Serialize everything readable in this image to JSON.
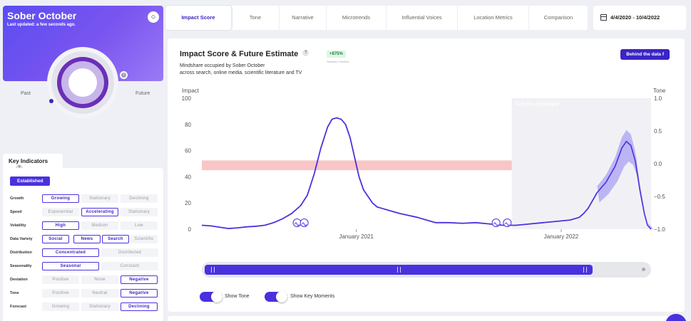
{
  "hero": {
    "title": "Sober October",
    "last_updated": "Last updated: a few seconds ago.",
    "past_label": "Past",
    "future_label": "Future"
  },
  "key_indicators": {
    "title": "Key Indicators",
    "help": "?",
    "status": "Established",
    "rows": [
      {
        "label": "Growth",
        "options": [
          "Growing",
          "Stationary",
          "Declining"
        ],
        "selected": [
          0
        ]
      },
      {
        "label": "Speed",
        "options": [
          "Exponential",
          "Accelerating",
          "Stationary"
        ],
        "selected": [
          1
        ]
      },
      {
        "label": "Volatility",
        "options": [
          "High",
          "Medium",
          "Low"
        ],
        "selected": [
          0
        ]
      },
      {
        "label": "Data Variety",
        "options": [
          "Social",
          "News",
          "Search",
          "Scientific"
        ],
        "selected": [
          0,
          1,
          2
        ]
      },
      {
        "label": "Distribution",
        "options": [
          "Concentrated",
          "Distributed"
        ],
        "selected": [
          0
        ]
      },
      {
        "label": "Seasonality",
        "options": [
          "Seasonal",
          "Constant"
        ],
        "selected": [
          0
        ]
      },
      {
        "label": "Deviation",
        "options": [
          "Positive",
          "None",
          "Negative"
        ],
        "selected": [
          2
        ]
      },
      {
        "label": "Tone",
        "options": [
          "Positive",
          "Neutral",
          "Negative"
        ],
        "selected": [
          2
        ]
      },
      {
        "label": "Forecast",
        "options": [
          "Growing",
          "Stationary",
          "Declining"
        ],
        "selected": [
          2
        ]
      }
    ]
  },
  "tabs": [
    "Impact Score",
    "Tone",
    "Narrative",
    "Microtrends",
    "Influential Voices",
    "Location Metrics",
    "Comparison"
  ],
  "active_tab": 0,
  "date_range": "4/4/2020 - 10/4/2022",
  "panel": {
    "title": "Impact Score & Future Estimate",
    "help": "?",
    "description_line1": "Mindshare occupied by Sober October",
    "description_line2": "across search, online media, scientific literature and TV",
    "change_badge": "+875%",
    "change_caption": "Selected Timeline",
    "behind_button": "Behind the data",
    "behind_icon": "f"
  },
  "chart_data": {
    "type": "line",
    "left_axis_title": "Impact",
    "right_axis_title": "Tone",
    "left_ticks": [
      "100",
      "80",
      "60",
      "40",
      "20",
      "0"
    ],
    "right_ticks": [
      "1.0",
      "0.5",
      "0.0",
      "−0.5",
      "−1.0"
    ],
    "x_labels": [
      "January 2021",
      "January 2022"
    ],
    "future_label": "Future estimate",
    "ylim": [
      0,
      100
    ],
    "tone_ylim": [
      -1,
      1
    ],
    "colors": {
      "impact": "#4a31e0",
      "tone_band": "#f6b3b3",
      "forecast": "#8f84f2"
    },
    "impact_series": [
      [
        0,
        3
      ],
      [
        0.02,
        2.5
      ],
      [
        0.04,
        1.5
      ],
      [
        0.06,
        0.5
      ],
      [
        0.08,
        1
      ],
      [
        0.1,
        1.8
      ],
      [
        0.12,
        2.2
      ],
      [
        0.14,
        3
      ],
      [
        0.16,
        5
      ],
      [
        0.18,
        8
      ],
      [
        0.2,
        12
      ],
      [
        0.22,
        18
      ],
      [
        0.235,
        26
      ],
      [
        0.25,
        42
      ],
      [
        0.265,
        62
      ],
      [
        0.28,
        78
      ],
      [
        0.29,
        84
      ],
      [
        0.3,
        85
      ],
      [
        0.31,
        84
      ],
      [
        0.32,
        80
      ],
      [
        0.33,
        70
      ],
      [
        0.34,
        55
      ],
      [
        0.35,
        40
      ],
      [
        0.36,
        30
      ],
      [
        0.37,
        25
      ],
      [
        0.38,
        20
      ],
      [
        0.39,
        17
      ],
      [
        0.4,
        16
      ],
      [
        0.42,
        14
      ],
      [
        0.44,
        12
      ],
      [
        0.46,
        10.5
      ],
      [
        0.48,
        9
      ],
      [
        0.5,
        7
      ],
      [
        0.52,
        5
      ],
      [
        0.55,
        5
      ],
      [
        0.58,
        4.5
      ],
      [
        0.61,
        5
      ],
      [
        0.64,
        4
      ],
      [
        0.67,
        3
      ],
      [
        0.7,
        3
      ],
      [
        0.73,
        4
      ],
      [
        0.76,
        5
      ],
      [
        0.79,
        6
      ],
      [
        0.82,
        7
      ],
      [
        0.84,
        9
      ],
      [
        0.85,
        12
      ],
      [
        0.86,
        16
      ],
      [
        0.87,
        22
      ],
      [
        0.88,
        28
      ]
    ],
    "forecast_series": [
      [
        0.88,
        28
      ],
      [
        0.9,
        36
      ],
      [
        0.92,
        48
      ],
      [
        0.935,
        62
      ],
      [
        0.945,
        67
      ],
      [
        0.955,
        64
      ],
      [
        0.965,
        52
      ],
      [
        0.975,
        30
      ],
      [
        0.985,
        12
      ],
      [
        0.992,
        3
      ],
      [
        1.0,
        0
      ]
    ],
    "tone_band": [
      -0.1,
      0.05
    ],
    "future_start": 0.69
  },
  "scrubber": {},
  "toggles": [
    {
      "label": "Show Tone",
      "on": true
    },
    {
      "label": "Show Key Moments",
      "on": true
    }
  ]
}
